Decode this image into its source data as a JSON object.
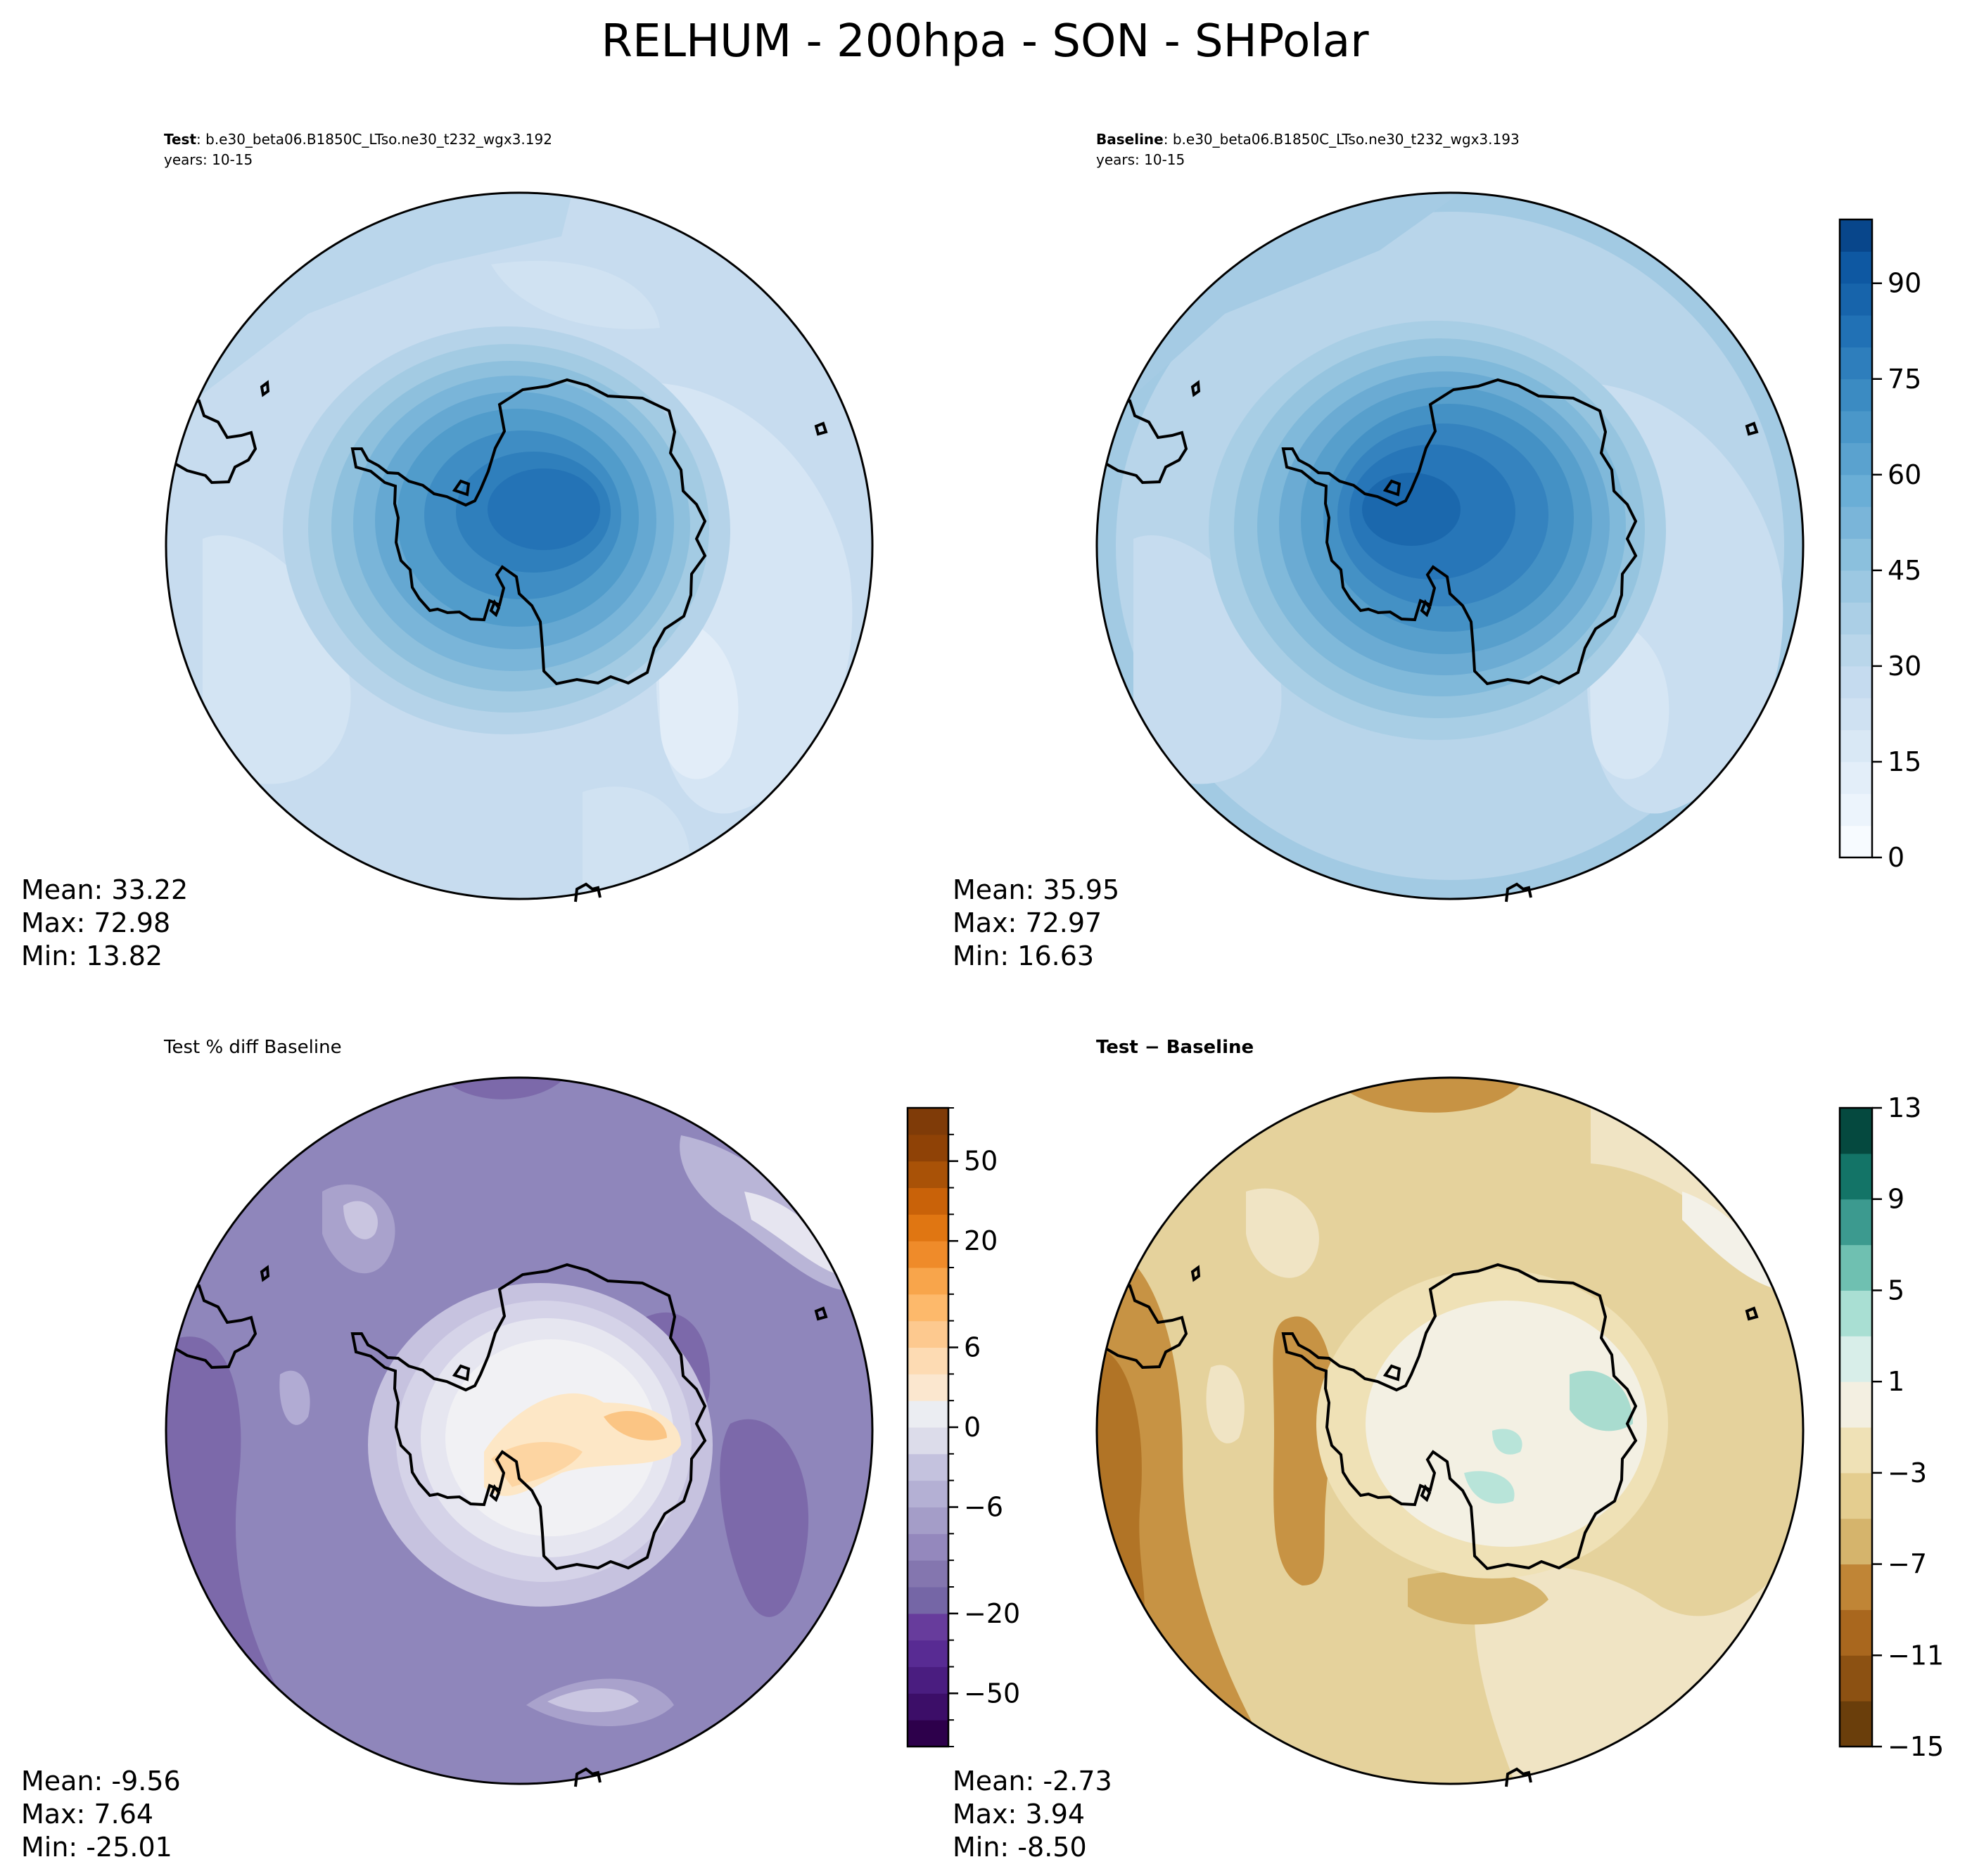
{
  "figure": {
    "title": "RELHUM - 200hpa - SON - SHPolar"
  },
  "chart_data": [
    {
      "type": "heatmap",
      "panel": "test",
      "title_label": "Test",
      "title_sep": ": ",
      "case": "b.e30_beta06.B1850C_LTso.ne30_t232_wgx3.192",
      "years": "years: 10-15",
      "stats": {
        "mean": "Mean: 33.22",
        "max": "Max: 72.98",
        "min": "Min: 13.82"
      },
      "field_range": [
        13.82,
        72.98
      ],
      "colormap": "Blues"
    },
    {
      "type": "heatmap",
      "panel": "baseline",
      "title_label": "Baseline",
      "title_sep": ": ",
      "case": "b.e30_beta06.B1850C_LTso.ne30_t232_wgx3.193",
      "years": "years: 10-15",
      "stats": {
        "mean": "Mean: 35.95",
        "max": "Max: 72.97",
        "min": "Min: 16.63"
      },
      "field_range": [
        16.63,
        72.97
      ],
      "colormap": "Blues",
      "colorbar": {
        "range": [
          0,
          100
        ],
        "levels": [
          0,
          5,
          10,
          15,
          20,
          25,
          30,
          35,
          40,
          45,
          50,
          55,
          60,
          65,
          70,
          75,
          80,
          85,
          90,
          95,
          100
        ],
        "ticks": [
          "0",
          "15",
          "30",
          "45",
          "60",
          "75",
          "90"
        ],
        "colors": [
          "#f7fbff",
          "#ecf4fc",
          "#e3eef9",
          "#d9e8f5",
          "#cfe1f2",
          "#c5dbef",
          "#b9d6ea",
          "#abcfe6",
          "#9cc8e2",
          "#8bc0dd",
          "#7ab5d9",
          "#6aaed6",
          "#5aa2cf",
          "#4a97c9",
          "#3b8bc2",
          "#2e7ebc",
          "#2171b5",
          "#1764ab",
          "#0e58a2",
          "#08468b"
        ]
      }
    },
    {
      "type": "heatmap",
      "panel": "pct_diff",
      "title": "Test % diff Baseline",
      "stats": {
        "mean": "Mean: -9.56",
        "max": "Max:  7.64",
        "min": "Min: -25.01"
      },
      "field_range": [
        -25.01,
        7.64
      ],
      "colormap": "PuOr_r",
      "colorbar": {
        "levels": [
          -100,
          -75,
          -50,
          -40,
          -30,
          -20,
          -15,
          -10,
          -8,
          -6,
          -4,
          -2,
          0,
          2,
          4,
          6,
          8,
          10,
          15,
          20,
          30,
          40,
          50,
          75,
          100
        ],
        "ticks": [
          "−50",
          "−20",
          "−6",
          "0",
          "6",
          "20",
          "50"
        ],
        "tick_levels": [
          -50,
          -20,
          -6,
          0,
          6,
          20,
          50
        ],
        "colors": [
          "#2d004b",
          "#3c0e68",
          "#4a1d80",
          "#582b93",
          "#673c9c",
          "#7566a6",
          "#8476af",
          "#9488bd",
          "#a49dc8",
          "#b4b0d4",
          "#c4c2de",
          "#dcdcea",
          "#ebedf2",
          "#fbe7cf",
          "#fddbb3",
          "#fdc98f",
          "#fdb96b",
          "#f8a54b",
          "#ef8b2a",
          "#e07612",
          "#c96209",
          "#a95207",
          "#8f4206",
          "#7f3b08"
        ]
      }
    },
    {
      "type": "heatmap",
      "panel": "diff",
      "title": "Test − Baseline",
      "stats": {
        "mean": "Mean: -2.73",
        "max": "Max:  3.94",
        "min": "Min: -8.50"
      },
      "field_range": [
        -8.5,
        3.94
      ],
      "colormap": "BrBG",
      "colorbar": {
        "range": [
          -15,
          13
        ],
        "levels": [
          -15,
          -13,
          -11,
          -9,
          -7,
          -5,
          -3,
          -1,
          1,
          3,
          5,
          7,
          9,
          11,
          13
        ],
        "ticks": [
          "−15",
          "−11",
          "−7",
          "−3",
          "1",
          "5",
          "9",
          "13"
        ],
        "colors": [
          "#6a3e0b",
          "#8c5112",
          "#a9671e",
          "#c08536",
          "#d5b46c",
          "#e4cd8f",
          "#efe1b6",
          "#f3efe1",
          "#d8eee9",
          "#a9dfd3",
          "#6fc0b1",
          "#3c9a8f",
          "#137467",
          "#05493f"
        ]
      }
    }
  ]
}
